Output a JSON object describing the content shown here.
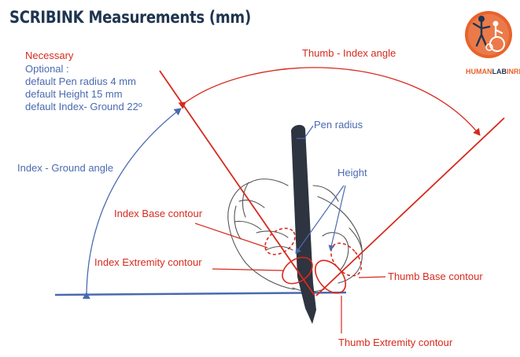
{
  "title": "SCRIBINK Measurements (mm)",
  "notes": {
    "necessary": "Necessary",
    "optional": "Optional :",
    "default_pen_radius": "default Pen radius 4 mm",
    "default_height": "default Height  15 mm",
    "default_index_ground": "default Index- Ground 22º"
  },
  "labels": {
    "thumb_index_angle": "Thumb - Index angle",
    "pen_radius": "Pen radius",
    "index_ground_angle": "Index - Ground angle",
    "height": "Height",
    "index_base_contour": "Index Base contour",
    "index_extremity_contour": "Index Extremity contour",
    "thumb_base_contour": "Thumb Base contour",
    "thumb_extremity_contour": "Thumb Extremity contour"
  },
  "logo": {
    "text_human": "HUMAN",
    "text_lab": "LAB",
    "text_inria": "INRIA"
  },
  "colors": {
    "title": "#1f3550",
    "red": "#d62a1e",
    "blue": "#4a6ab0",
    "pen": "#2e3440",
    "logo_orange": "#e8632b"
  }
}
